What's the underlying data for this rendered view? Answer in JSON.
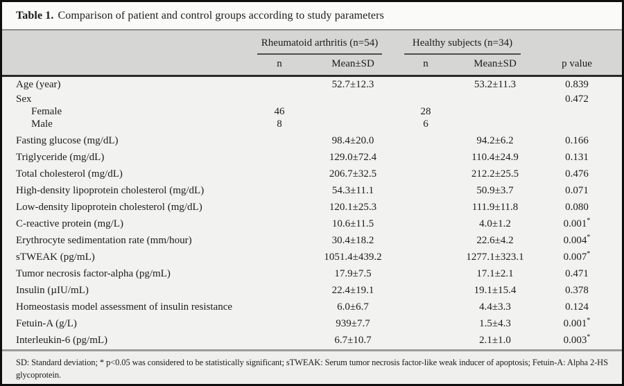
{
  "table": {
    "label": "Table 1.",
    "title": "Comparison of patient and control groups according to study parameters",
    "header": {
      "group_ra": "Rheumatoid arthritis (n=54)",
      "group_hs": "Healthy subjects (n=34)",
      "sub_n_ra": "n",
      "sub_mean_ra": "Mean±SD",
      "sub_n_hs": "n",
      "sub_mean_hs": "Mean±SD",
      "p_value": "p value"
    },
    "rows": [
      {
        "label": "Age (year)",
        "indent": false,
        "ra_n": "",
        "ra_mean": "52.7±12.3",
        "hs_n": "",
        "hs_mean": "53.2±11.3",
        "p": "0.839"
      },
      {
        "label": "Sex",
        "indent": false,
        "ra_n": "",
        "ra_mean": "",
        "hs_n": "",
        "hs_mean": "",
        "p": "0.472"
      },
      {
        "label": "Female",
        "indent": true,
        "ra_n": "46",
        "ra_mean": "",
        "hs_n": "28",
        "hs_mean": "",
        "p": ""
      },
      {
        "label": "Male",
        "indent": true,
        "ra_n": "8",
        "ra_mean": "",
        "hs_n": "6",
        "hs_mean": "",
        "p": ""
      },
      {
        "label": "Fasting glucose (mg/dL)",
        "indent": false,
        "ra_n": "",
        "ra_mean": "98.4±20.0",
        "hs_n": "",
        "hs_mean": "94.2±6.2",
        "p": "0.166"
      },
      {
        "label": "Triglyceride (mg/dL)",
        "indent": false,
        "ra_n": "",
        "ra_mean": "129.0±72.4",
        "hs_n": "",
        "hs_mean": "110.4±24.9",
        "p": "0.131"
      },
      {
        "label": "Total cholesterol (mg/dL)",
        "indent": false,
        "ra_n": "",
        "ra_mean": "206.7±32.5",
        "hs_n": "",
        "hs_mean": "212.2±25.5",
        "p": "0.476"
      },
      {
        "label": "High-density lipoprotein cholesterol (mg/dL)",
        "indent": false,
        "ra_n": "",
        "ra_mean": "54.3±11.1",
        "hs_n": "",
        "hs_mean": "50.9±3.7",
        "p": "0.071"
      },
      {
        "label": "Low-density lipoprotein cholesterol (mg/dL)",
        "indent": false,
        "ra_n": "",
        "ra_mean": "120.1±25.3",
        "hs_n": "",
        "hs_mean": "111.9±11.8",
        "p": "0.080"
      },
      {
        "label": "C-reactive protein (mg/L)",
        "indent": false,
        "ra_n": "",
        "ra_mean": "10.6±11.5",
        "hs_n": "",
        "hs_mean": "4.0±1.2",
        "p": "0.001*"
      },
      {
        "label": "Erythrocyte sedimentation rate (mm/hour)",
        "indent": false,
        "ra_n": "",
        "ra_mean": "30.4±18.2",
        "hs_n": "",
        "hs_mean": "22.6±4.2",
        "p": "0.004*"
      },
      {
        "label": "sTWEAK (pg/mL)",
        "indent": false,
        "ra_n": "",
        "ra_mean": "1051.4±439.2",
        "hs_n": "",
        "hs_mean": "1277.1±323.1",
        "p": "0.007*"
      },
      {
        "label": "Tumor necrosis factor-alpha (pg/mL)",
        "indent": false,
        "ra_n": "",
        "ra_mean": "17.9±7.5",
        "hs_n": "",
        "hs_mean": "17.1±2.1",
        "p": "0.471"
      },
      {
        "label": "Insulin (µIU/mL)",
        "indent": false,
        "ra_n": "",
        "ra_mean": "22.4±19.1",
        "hs_n": "",
        "hs_mean": "19.1±15.4",
        "p": "0.378"
      },
      {
        "label": "Homeostasis model assessment of insulin resistance",
        "indent": false,
        "ra_n": "",
        "ra_mean": "6.0±6.7",
        "hs_n": "",
        "hs_mean": "4.4±3.3",
        "p": "0.124"
      },
      {
        "label": "Fetuin-A (g/L)",
        "indent": false,
        "ra_n": "",
        "ra_mean": "939±7.7",
        "hs_n": "",
        "hs_mean": "1.5±4.3",
        "p": "0.001*"
      },
      {
        "label": "Interleukin-6 (pg/mL)",
        "indent": false,
        "ra_n": "",
        "ra_mean": "6.7±10.7",
        "hs_n": "",
        "hs_mean": "2.1±1.0",
        "p": "0.003*"
      }
    ],
    "footnote": "SD: Standard deviation; * p<0.05 was considered to be statistically significant; sTWEAK: Serum tumor necrosis factor-like weak inducer of apoptosis; Fetuin-A: Alpha 2-HS glycoprotein."
  },
  "colors": {
    "frame_border": "#0e0e0e",
    "header_band": "#d6d6d5",
    "body_background": "#f2f2f1",
    "title_background": "#fafaf9",
    "rule_gray": "#8c8c8c",
    "rule_dark": "#292929",
    "text": "#1b1b1b"
  }
}
